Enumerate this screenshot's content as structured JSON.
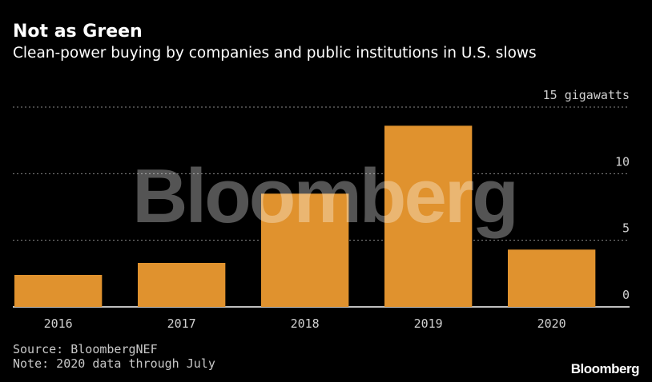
{
  "header": {
    "title": "Not as Green",
    "subtitle": "Clean-power buying by companies and public institutions in U.S. slows"
  },
  "chart_data": {
    "type": "bar",
    "categories": [
      "2016",
      "2017",
      "2018",
      "2019",
      "2020"
    ],
    "values": [
      2.4,
      3.3,
      8.5,
      13.6,
      4.3
    ],
    "unit_label": "15 gigawatts",
    "y_ticks": [
      {
        "value": 15,
        "label": "15 gigawatts"
      },
      {
        "value": 10,
        "label": "10"
      },
      {
        "value": 5,
        "label": "5"
      },
      {
        "value": 0,
        "label": "0"
      }
    ],
    "ylim": [
      0,
      15
    ],
    "grid": true,
    "bar_color": "#e0922e",
    "watermark": "Bloomberg"
  },
  "footer": {
    "source": "Source: BloombergNEF",
    "note": "Note: 2020 data through July",
    "brand": "Bloomberg"
  },
  "colors": {
    "background": "#000000",
    "grid": "#8a8a8a",
    "text": "#ffffff",
    "tick_text": "#d0d0d0"
  }
}
